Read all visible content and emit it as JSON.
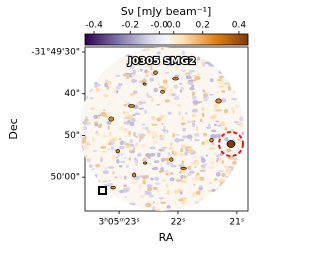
{
  "chart_data": {
    "type": "image",
    "annotation": "J0305 SMG2",
    "colorbar_label": "Sν [mJy beam⁻¹]",
    "clim": [
      -0.45,
      0.45
    ],
    "cticks": [
      -0.4,
      -0.2,
      {
        "value": -0.04,
        "label": "-0.0"
      },
      {
        "value": 0.04,
        "label": "0.0"
      },
      0.2,
      0.4
    ],
    "xlabel": "RA",
    "ylabel": "Dec",
    "xlim": [
      23.58,
      20.81
    ],
    "xticks": [
      {
        "value": 23,
        "label": "3ʰ05ᵐ23ˢ"
      },
      {
        "value": 22,
        "label": "22ˢ"
      },
      {
        "value": 21,
        "label": "21ˢ"
      }
    ],
    "ylim": [
      68.1,
      28.8
    ],
    "yticks": [
      {
        "value": 30,
        "label": "-31°49'30\""
      },
      {
        "value": 40,
        "label": "40\""
      },
      {
        "value": 50,
        "label": "50\""
      },
      {
        "value": 60,
        "label": "50'00\""
      }
    ]
  }
}
